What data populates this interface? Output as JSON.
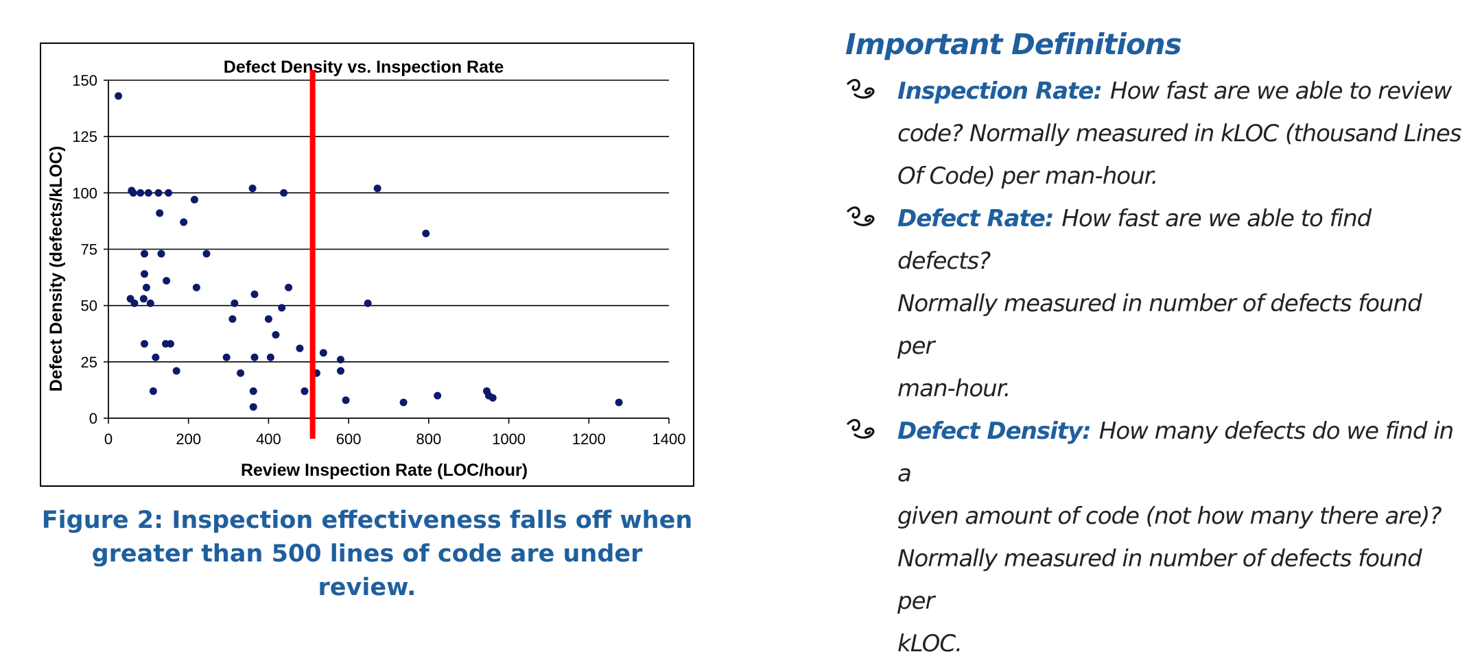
{
  "chart_data": {
    "type": "scatter",
    "title": "Defect Density vs. Inspection Rate",
    "xlabel": "Review Inspection Rate (LOC/hour)",
    "ylabel": "Defect Density (defects/kLOC)",
    "xlim": [
      0,
      1400
    ],
    "ylim": [
      0,
      150
    ],
    "x_ticks": [
      "0",
      "200",
      "400",
      "600",
      "800",
      "1000",
      "1200",
      "1400"
    ],
    "y_ticks": [
      "0",
      "25",
      "50",
      "75",
      "100",
      "125",
      "150"
    ],
    "grid": "horizontal",
    "marker_color": "#0d1a6b",
    "threshold_line": {
      "x": 510,
      "color": "#ff0000"
    },
    "points": [
      {
        "x": 25,
        "y": 143
      },
      {
        "x": 58,
        "y": 101
      },
      {
        "x": 62,
        "y": 100
      },
      {
        "x": 80,
        "y": 100
      },
      {
        "x": 100,
        "y": 100
      },
      {
        "x": 125,
        "y": 100
      },
      {
        "x": 150,
        "y": 100
      },
      {
        "x": 128,
        "y": 91
      },
      {
        "x": 188,
        "y": 87
      },
      {
        "x": 215,
        "y": 97
      },
      {
        "x": 90,
        "y": 73
      },
      {
        "x": 132,
        "y": 73
      },
      {
        "x": 245,
        "y": 73
      },
      {
        "x": 90,
        "y": 64
      },
      {
        "x": 145,
        "y": 61
      },
      {
        "x": 95,
        "y": 58
      },
      {
        "x": 220,
        "y": 58
      },
      {
        "x": 55,
        "y": 53
      },
      {
        "x": 88,
        "y": 53
      },
      {
        "x": 65,
        "y": 51
      },
      {
        "x": 105,
        "y": 51
      },
      {
        "x": 90,
        "y": 33
      },
      {
        "x": 143,
        "y": 33
      },
      {
        "x": 155,
        "y": 33
      },
      {
        "x": 118,
        "y": 27
      },
      {
        "x": 170,
        "y": 21
      },
      {
        "x": 112,
        "y": 12
      },
      {
        "x": 315,
        "y": 51
      },
      {
        "x": 310,
        "y": 44
      },
      {
        "x": 295,
        "y": 27
      },
      {
        "x": 330,
        "y": 20
      },
      {
        "x": 360,
        "y": 102
      },
      {
        "x": 365,
        "y": 55
      },
      {
        "x": 365,
        "y": 27
      },
      {
        "x": 362,
        "y": 12
      },
      {
        "x": 362,
        "y": 5
      },
      {
        "x": 400,
        "y": 44
      },
      {
        "x": 405,
        "y": 27
      },
      {
        "x": 418,
        "y": 37
      },
      {
        "x": 433,
        "y": 49
      },
      {
        "x": 438,
        "y": 100
      },
      {
        "x": 450,
        "y": 58
      },
      {
        "x": 478,
        "y": 31
      },
      {
        "x": 490,
        "y": 12
      },
      {
        "x": 520,
        "y": 20
      },
      {
        "x": 537,
        "y": 29
      },
      {
        "x": 580,
        "y": 26
      },
      {
        "x": 580,
        "y": 21
      },
      {
        "x": 593,
        "y": 8
      },
      {
        "x": 648,
        "y": 51
      },
      {
        "x": 672,
        "y": 102
      },
      {
        "x": 793,
        "y": 82
      },
      {
        "x": 737,
        "y": 7
      },
      {
        "x": 822,
        "y": 10
      },
      {
        "x": 945,
        "y": 12
      },
      {
        "x": 950,
        "y": 10
      },
      {
        "x": 960,
        "y": 9
      },
      {
        "x": 1275,
        "y": 7
      }
    ]
  },
  "caption": {
    "line1": "Figure 2: Inspection effectiveness falls off when",
    "line2": "greater than 500 lines of code are under review."
  },
  "definitions": {
    "heading": "Important Definitions",
    "bullet_icon": "scroll-bullet-icon",
    "items": [
      {
        "term": "Inspection Rate:",
        "lines": [
          "How fast are we able to review",
          "code? Normally measured in kLOC (thousand Lines",
          "Of Code) per man-hour."
        ]
      },
      {
        "term": "Defect Rate:",
        "lines": [
          "How fast are we able to find defects?",
          "Normally measured in number of defects found per",
          "man-hour."
        ]
      },
      {
        "term": "Defect Density:",
        "lines": [
          "How many defects do we find in a",
          "given amount of code (not how many there are)?",
          "Normally measured in number of defects found per",
          "kLOC."
        ]
      }
    ]
  }
}
